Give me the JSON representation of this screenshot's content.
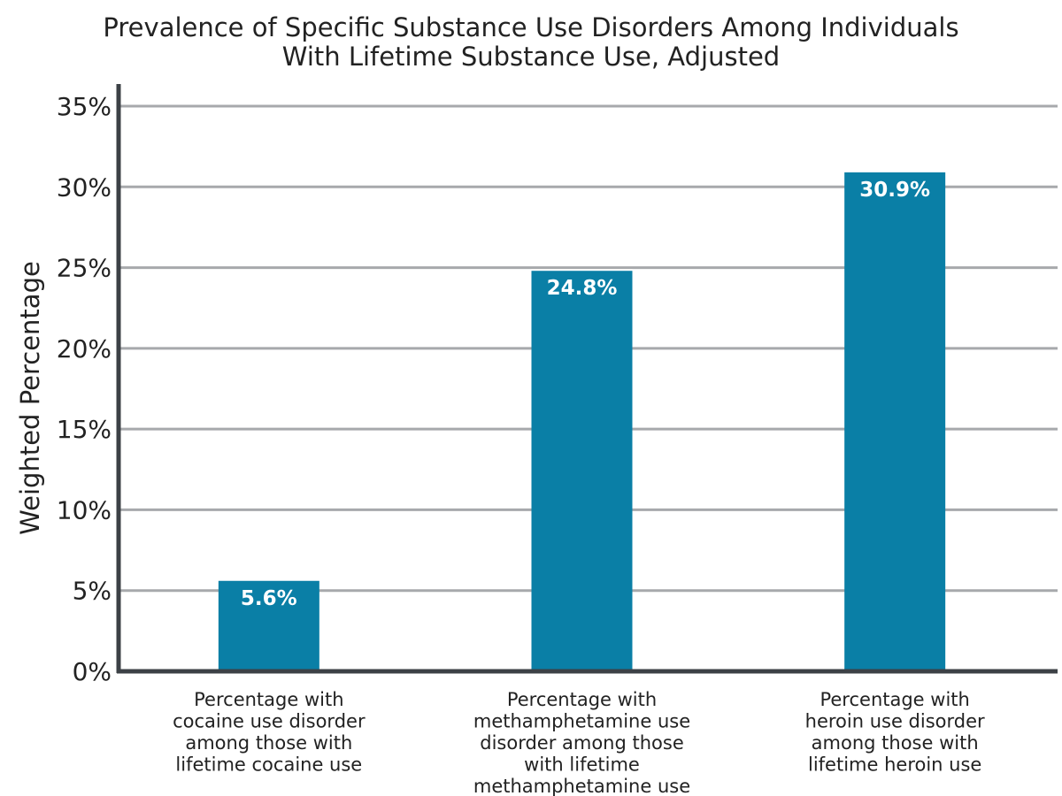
{
  "chart_data": {
    "type": "bar",
    "title": "Prevalence of Specific Substance Use Disorders Among Individuals With Lifetime Substance Use, Adjusted",
    "title_lines": [
      "Prevalence of Specific Substance Use Disorders Among Individuals",
      "With Lifetime Substance Use, Adjusted"
    ],
    "xlabel": "",
    "ylabel": "Weighted Percentage",
    "ylim": [
      0,
      35
    ],
    "yticks": [
      0,
      5,
      10,
      15,
      20,
      25,
      30,
      35
    ],
    "ytick_labels": [
      "0%",
      "5%",
      "10%",
      "15%",
      "20%",
      "25%",
      "30%",
      "35%"
    ],
    "grid": true,
    "legend": "none",
    "categories": [
      "Percentage with cocaine use disorder among those with lifetime cocaine use",
      "Percentage with methamphetamine use disorder among those with lifetime methamphetamine use",
      "Percentage with heroin use disorder among those with lifetime heroin use"
    ],
    "category_lines": [
      [
        "Percentage with",
        "cocaine use disorder",
        "among those with",
        "lifetime cocaine use"
      ],
      [
        "Percentage with",
        "methamphetamine use",
        "disorder among those",
        "with lifetime",
        "methamphetamine use"
      ],
      [
        "Percentage with",
        "heroin use disorder",
        "among those with",
        "lifetime heroin use"
      ]
    ],
    "values": [
      5.6,
      24.8,
      30.9
    ],
    "data_labels": [
      "5.6%",
      "24.8%",
      "30.9%"
    ],
    "colors": {
      "bar": "#0a7fa6",
      "grid": "#a7a9ac",
      "axis": "#3c4146",
      "text": "#222222",
      "data_label": "#ffffff"
    }
  }
}
